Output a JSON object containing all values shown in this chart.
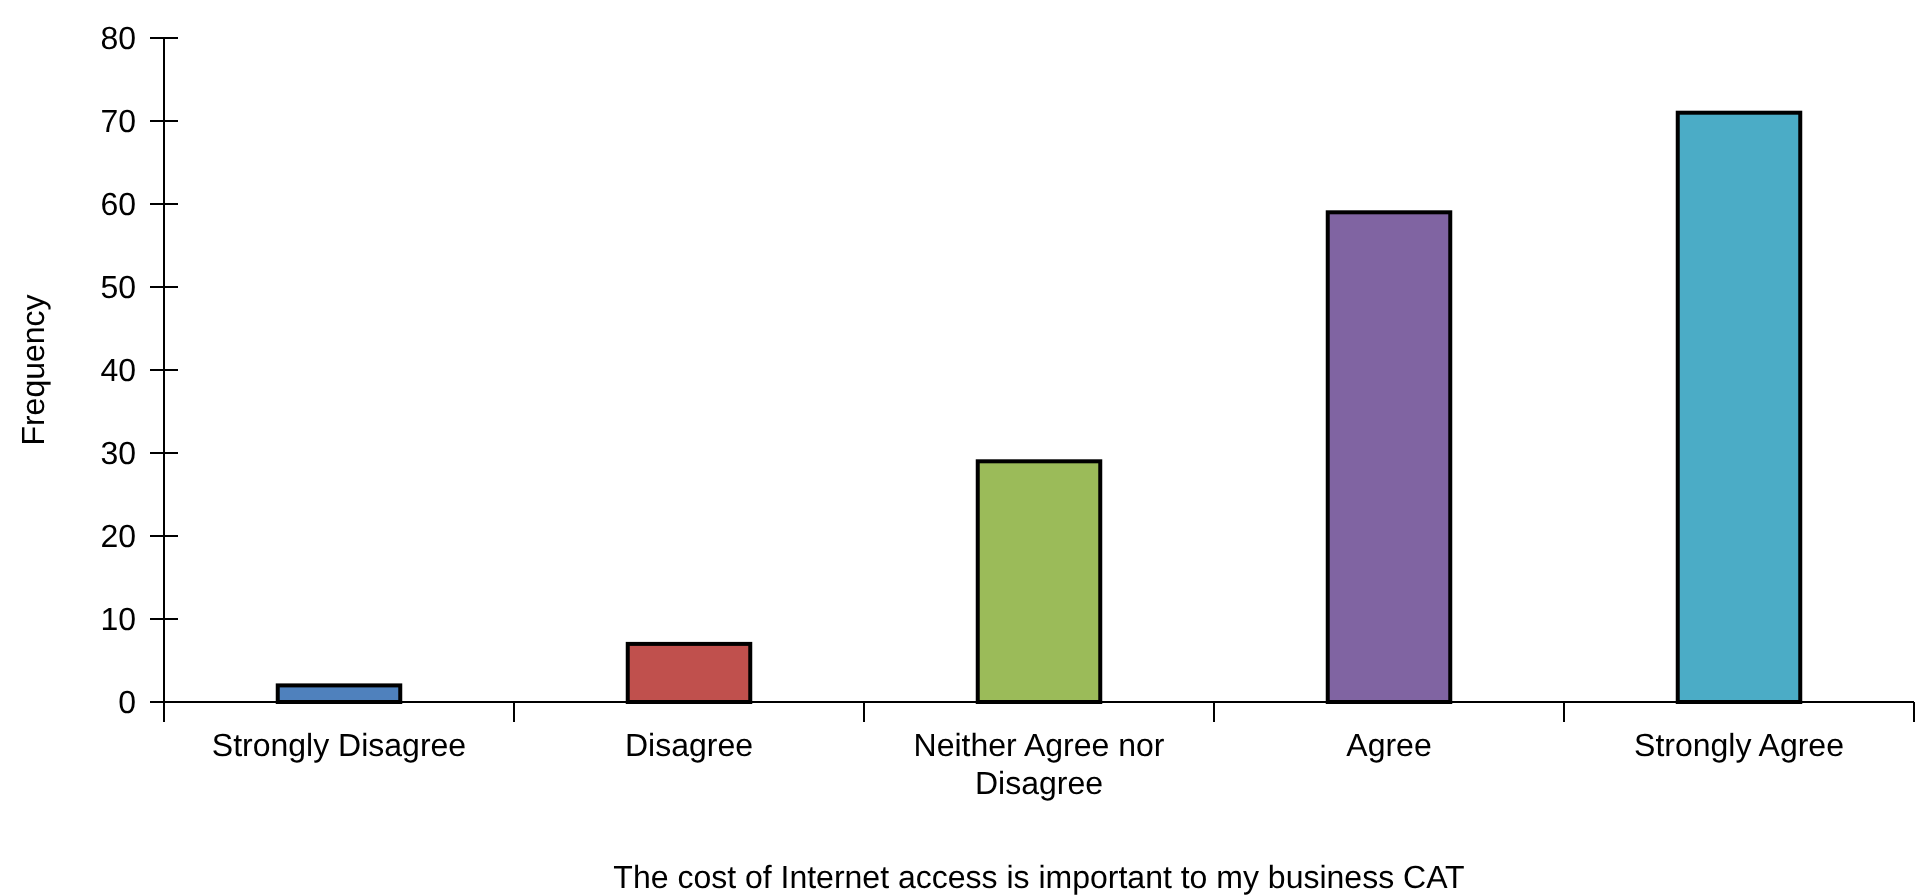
{
  "chart_data": {
    "type": "bar",
    "xlabel": "The cost of Internet access is important to my business CAT",
    "ylabel": "Frequency",
    "categories": [
      "Strongly Disagree",
      "Disagree",
      "Neither Agree nor Disagree",
      "Agree",
      "Strongly Agree"
    ],
    "values": [
      2,
      7,
      29,
      59,
      71
    ],
    "colors": [
      "#4f81bd",
      "#c0504d",
      "#9bbb59",
      "#8064a2",
      "#4bacc6"
    ],
    "ylim": [
      0,
      80
    ],
    "yticks": [
      0,
      10,
      20,
      30,
      40,
      50,
      60,
      70,
      80
    ]
  }
}
